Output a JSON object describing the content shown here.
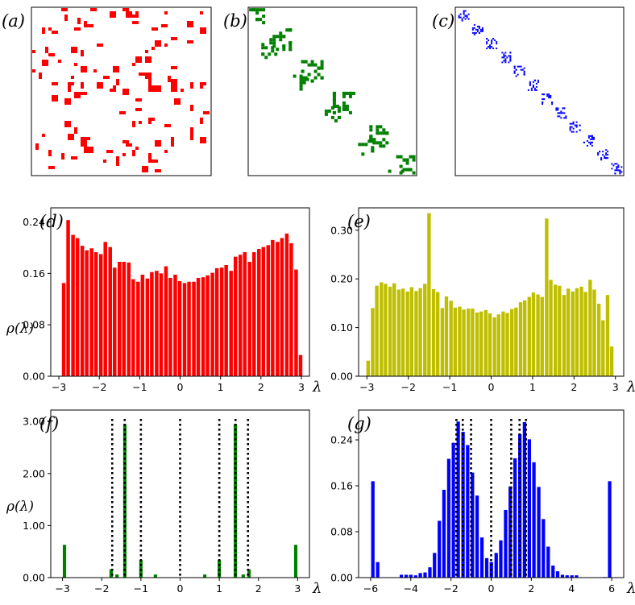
{
  "matrices": [
    {
      "label": "(a)",
      "color": "#ff0000",
      "pattern": "random"
    },
    {
      "label": "(b)",
      "color": "#008000",
      "pattern": "blocks"
    },
    {
      "label": "(c)",
      "color": "#0000ff",
      "pattern": "small-blocks"
    }
  ],
  "chart_data": [
    {
      "id": "d",
      "type": "bar",
      "panel_label": "(d)",
      "color": "#ff0000",
      "ylabel": "ρ(λ)",
      "xlabel": "λ",
      "xlim": [
        -3.2,
        3.2
      ],
      "ylim": [
        0,
        0.262
      ],
      "xticks": [
        -3,
        -2,
        -1,
        0,
        1,
        2,
        3
      ],
      "xtick_labels": [
        "−3",
        "−2",
        "−1",
        "0",
        "1",
        "2",
        "3"
      ],
      "yticks": [
        0,
        0.08,
        0.16,
        0.24
      ],
      "ytick_labels": [
        "0.00",
        "0.08",
        "0.16",
        "0.24"
      ],
      "bar_width": 0.09,
      "x": [
        -2.88,
        -2.77,
        -2.65,
        -2.54,
        -2.42,
        -2.31,
        -2.19,
        -2.08,
        -1.96,
        -1.85,
        -1.73,
        -1.62,
        -1.5,
        -1.39,
        -1.27,
        -1.16,
        -1.04,
        -0.93,
        -0.81,
        -0.7,
        -0.58,
        -0.47,
        -0.35,
        -0.24,
        -0.12,
        -0.01,
        0.11,
        0.22,
        0.34,
        0.45,
        0.57,
        0.68,
        0.8,
        0.91,
        1.03,
        1.14,
        1.26,
        1.37,
        1.49,
        1.6,
        1.72,
        1.83,
        1.95,
        2.06,
        2.18,
        2.29,
        2.41,
        2.52,
        2.64,
        2.75,
        2.87,
        2.98
      ],
      "values": [
        0.145,
        0.243,
        0.22,
        0.215,
        0.203,
        0.196,
        0.199,
        0.193,
        0.19,
        0.209,
        0.201,
        0.169,
        0.178,
        0.178,
        0.177,
        0.151,
        0.147,
        0.158,
        0.152,
        0.162,
        0.164,
        0.16,
        0.171,
        0.153,
        0.158,
        0.148,
        0.145,
        0.147,
        0.147,
        0.153,
        0.154,
        0.157,
        0.161,
        0.168,
        0.169,
        0.173,
        0.164,
        0.186,
        0.189,
        0.193,
        0.178,
        0.193,
        0.198,
        0.201,
        0.204,
        0.212,
        0.209,
        0.215,
        0.222,
        0.207,
        0.166,
        0.033
      ]
    },
    {
      "id": "e",
      "type": "bar",
      "panel_label": "(e)",
      "color": "#bfbf00",
      "ylabel": "",
      "xlabel": "λ",
      "xlim": [
        -3.2,
        3.2
      ],
      "ylim": [
        0,
        0.346
      ],
      "xticks": [
        -3,
        -2,
        -1,
        0,
        1,
        2,
        3
      ],
      "xtick_labels": [
        "−3",
        "−2",
        "−1",
        "0",
        "1",
        "2",
        "3"
      ],
      "yticks": [
        0,
        0.1,
        0.2,
        0.3
      ],
      "ytick_labels": [
        "0.00",
        "0.10",
        "0.20",
        "0.30"
      ],
      "bar_width": 0.085,
      "x": [
        -2.97,
        -2.86,
        -2.76,
        -2.65,
        -2.55,
        -2.44,
        -2.34,
        -2.23,
        -2.13,
        -2.02,
        -1.92,
        -1.81,
        -1.71,
        -1.6,
        -1.5,
        -1.39,
        -1.29,
        -1.18,
        -1.08,
        -0.97,
        -0.87,
        -0.76,
        -0.66,
        -0.55,
        -0.45,
        -0.34,
        -0.24,
        -0.13,
        -0.03,
        0.08,
        0.18,
        0.29,
        0.39,
        0.5,
        0.6,
        0.71,
        0.81,
        0.92,
        1.02,
        1.13,
        1.23,
        1.34,
        1.44,
        1.55,
        1.65,
        1.76,
        1.86,
        1.97,
        2.07,
        2.18,
        2.28,
        2.39,
        2.49,
        2.6,
        2.7,
        2.81,
        2.91
      ],
      "values": [
        0.032,
        0.14,
        0.186,
        0.193,
        0.19,
        0.184,
        0.191,
        0.178,
        0.18,
        0.174,
        0.183,
        0.175,
        0.181,
        0.19,
        0.335,
        0.179,
        0.173,
        0.14,
        0.164,
        0.155,
        0.141,
        0.143,
        0.137,
        0.139,
        0.139,
        0.131,
        0.133,
        0.136,
        0.129,
        0.121,
        0.127,
        0.133,
        0.13,
        0.138,
        0.141,
        0.152,
        0.156,
        0.163,
        0.172,
        0.168,
        0.163,
        0.324,
        0.198,
        0.188,
        0.186,
        0.167,
        0.18,
        0.174,
        0.181,
        0.184,
        0.173,
        0.198,
        0.178,
        0.149,
        0.115,
        0.167,
        0.061
      ]
    },
    {
      "id": "f",
      "type": "bar",
      "panel_label": "(f)",
      "color": "#008000",
      "ylabel": "ρ(λ)",
      "xlabel": "λ",
      "xlim": [
        -3.3,
        3.3
      ],
      "ylim": [
        0,
        3.22
      ],
      "xticks": [
        -3,
        -2,
        -1,
        0,
        1,
        2,
        3
      ],
      "xtick_labels": [
        "−3",
        "−2",
        "−1",
        "0",
        "1",
        "2",
        "3"
      ],
      "yticks": [
        0,
        1,
        2,
        3
      ],
      "ytick_labels": [
        "0.00",
        "1.00",
        "2.00",
        "3.00"
      ],
      "bar_width": 0.085,
      "x": [
        -2.95,
        -1.76,
        -1.61,
        -1.41,
        -1.0,
        -0.63,
        0.63,
        1.0,
        1.41,
        1.61,
        1.76,
        2.95
      ],
      "values": [
        0.63,
        0.16,
        0.06,
        2.95,
        0.34,
        0.06,
        0.06,
        0.34,
        2.95,
        0.06,
        0.16,
        0.63
      ],
      "reference_lines": [
        -1.732,
        -1.414,
        -1.0,
        0,
        1.0,
        1.414,
        1.732
      ]
    },
    {
      "id": "g",
      "type": "bar",
      "panel_label": "(g)",
      "color": "#0000ff",
      "ylabel": "",
      "xlabel": "λ",
      "xlim": [
        -6.6,
        6.6
      ],
      "ylim": [
        0,
        0.292
      ],
      "xticks": [
        -6,
        -4,
        -2,
        0,
        2,
        4,
        6
      ],
      "xtick_labels": [
        "−6",
        "−4",
        "−2",
        "0",
        "2",
        "4",
        "6"
      ],
      "yticks": [
        0,
        0.08,
        0.16,
        0.24
      ],
      "ytick_labels": [
        "0.00",
        "0.08",
        "0.16",
        "0.24"
      ],
      "bar_width": 0.17,
      "x": [
        -5.89,
        -5.65,
        -4.47,
        -4.23,
        -4.0,
        -3.76,
        -3.53,
        -3.29,
        -3.05,
        -2.82,
        -2.58,
        -2.35,
        -2.11,
        -1.88,
        -1.64,
        -1.4,
        -1.17,
        -0.93,
        -0.7,
        -0.46,
        -0.22,
        0.01,
        0.25,
        0.48,
        0.72,
        0.95,
        1.19,
        1.43,
        1.66,
        1.9,
        2.13,
        2.37,
        2.6,
        2.84,
        3.08,
        3.31,
        3.55,
        3.78,
        4.02,
        4.25,
        5.66,
        5.9
      ],
      "values": [
        0.168,
        0.027,
        0.005,
        0.005,
        0.005,
        0.004,
        0.008,
        0.009,
        0.018,
        0.043,
        0.099,
        0.153,
        0.207,
        0.235,
        0.272,
        0.254,
        0.231,
        0.183,
        0.143,
        0.07,
        0.034,
        0.027,
        0.043,
        0.065,
        0.118,
        0.159,
        0.208,
        0.25,
        0.271,
        0.241,
        0.201,
        0.158,
        0.102,
        0.054,
        0.021,
        0.011,
        0.005,
        0.004,
        0.004,
        0.004,
        0.001,
        0.168
      ],
      "reference_lines": [
        -1.732,
        -1.414,
        -1.0,
        0,
        1.0,
        1.414,
        1.732
      ]
    }
  ]
}
